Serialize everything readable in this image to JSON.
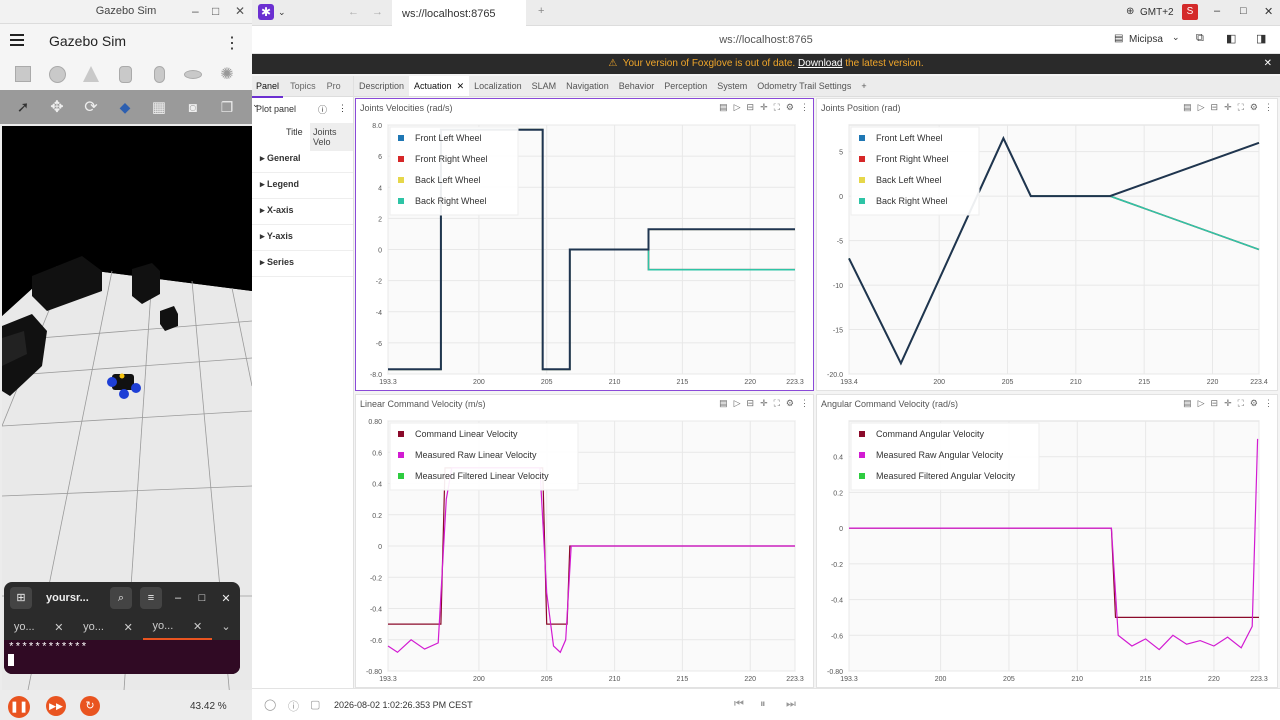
{
  "gazebo": {
    "window_title": "Gazebo Sim",
    "app_title": "Gazebo Sim",
    "zoom": "43.42 %",
    "window_controls": [
      "–",
      "□",
      "✕"
    ]
  },
  "terminal": {
    "title": "yoursr...",
    "tabs": [
      "yo...",
      "yo...",
      "yo..."
    ],
    "prompt": "************"
  },
  "foxglove": {
    "tab_title": "ws://localhost:8765",
    "address": "ws://localhost:8765",
    "timezone": "GMT+2",
    "user_initial": "S",
    "layout_name": "Micipsa",
    "banner_text": "Your version of Foxglove is out of date.",
    "banner_link": "Download",
    "banner_tail": "the latest version.",
    "left_tabs": [
      "Panel",
      "Topics",
      "Pro"
    ],
    "panel_header": "Plot panel",
    "title_label": "Title",
    "title_value": "Joints Velo",
    "sections": [
      "General",
      "Legend",
      "X-axis",
      "Y-axis",
      "Series"
    ],
    "main_tabs": [
      "Description",
      "Actuation",
      "Localization",
      "SLAM",
      "Navigation",
      "Behavior",
      "Perception",
      "System",
      "Odometry Trail Settings"
    ],
    "active_tab": "Actuation",
    "timestamp": "2026-08-02 1:02:26.353 PM CEST"
  },
  "chart_data": [
    {
      "type": "line",
      "title": "Joints Velocities (rad/s)",
      "xlim": [
        193.3,
        223.3
      ],
      "ylim": [
        -8,
        8
      ],
      "xticks": [
        "193.3",
        "200",
        "205",
        "210",
        "215",
        "220",
        "223.3"
      ],
      "yticks": [
        "8.0",
        "6",
        "4",
        "2",
        "0",
        "-2",
        "-4",
        "-6",
        "-8.0"
      ],
      "legend": "top-left",
      "colors": [
        "#1f77b4",
        "#d62728",
        "#e6d74a",
        "#2ec4a6"
      ],
      "series": [
        {
          "name": "Front Left Wheel",
          "x": [
            193.3,
            197.2,
            197.2,
            204.7,
            204.7,
            206.7,
            206.7,
            212.5,
            212.5,
            223.3
          ],
          "y": [
            -7.7,
            -7.7,
            7.7,
            7.7,
            -7.7,
            -7.7,
            0,
            0,
            1.3,
            1.3
          ]
        },
        {
          "name": "Front Right Wheel",
          "x": [
            193.3,
            197.2,
            197.2,
            204.7,
            204.7,
            206.7,
            206.7,
            212.5,
            212.5,
            223.3
          ],
          "y": [
            -7.7,
            -7.7,
            7.7,
            7.7,
            -7.7,
            -7.7,
            0,
            0,
            -1.3,
            -1.3
          ]
        },
        {
          "name": "Back Left Wheel",
          "x": [
            193.3,
            197.2,
            197.2,
            204.7,
            204.7,
            206.7,
            206.7,
            212.5,
            212.5,
            223.3
          ],
          "y": [
            -7.7,
            -7.7,
            7.7,
            7.7,
            -7.7,
            -7.7,
            0,
            0,
            1.3,
            1.3
          ]
        },
        {
          "name": "Back Right Wheel",
          "x": [
            193.3,
            197.2,
            197.2,
            204.7,
            204.7,
            206.7,
            206.7,
            212.5,
            212.5,
            223.3
          ],
          "y": [
            -7.7,
            -7.7,
            7.7,
            7.7,
            -7.7,
            -7.7,
            0,
            0,
            -1.3,
            -1.3
          ]
        }
      ]
    },
    {
      "type": "line",
      "title": "Joints Position (rad)",
      "xlim": [
        193.4,
        223.4
      ],
      "ylim": [
        -20,
        8
      ],
      "xticks": [
        "193.4",
        "200",
        "205",
        "210",
        "215",
        "220",
        "223.4"
      ],
      "yticks": [
        "5",
        "0",
        "-5",
        "-10",
        "-15",
        "-20.0"
      ],
      "legend": "top-left",
      "colors": [
        "#1f77b4",
        "#d62728",
        "#e6d74a",
        "#2ec4a6"
      ],
      "series": [
        {
          "name": "Front Left Wheel",
          "x": [
            193.4,
            197.2,
            204.7,
            206.7,
            212.5,
            223.4
          ],
          "y": [
            -7,
            -18.8,
            6.5,
            0,
            0,
            6
          ]
        },
        {
          "name": "Front Right Wheel",
          "x": [
            193.4,
            197.2,
            204.7,
            206.7,
            212.5,
            223.4
          ],
          "y": [
            -7,
            -18.8,
            6.5,
            0,
            0,
            -6
          ]
        },
        {
          "name": "Back Left Wheel",
          "x": [
            193.4,
            197.2,
            204.7,
            206.7,
            212.5,
            223.4
          ],
          "y": [
            -7,
            -18.8,
            6.5,
            0,
            0,
            6
          ]
        },
        {
          "name": "Back Right Wheel",
          "x": [
            193.4,
            197.2,
            204.7,
            206.7,
            212.5,
            223.4
          ],
          "y": [
            -7,
            -18.8,
            6.5,
            0,
            0,
            -6
          ]
        }
      ]
    },
    {
      "type": "line",
      "title": "Linear Command Velocity (m/s)",
      "xlim": [
        193.3,
        223.3
      ],
      "ylim": [
        -0.8,
        0.8
      ],
      "xticks": [
        "193.3",
        "200",
        "205",
        "210",
        "215",
        "220",
        "223.3"
      ],
      "yticks": [
        "0.80",
        "0.6",
        "0.4",
        "0.2",
        "0",
        "-0.2",
        "-0.4",
        "-0.6",
        "-0.80"
      ],
      "legend": "top-left",
      "colors": [
        "#8b0a2a",
        "#d21bd2",
        "#2ecc40"
      ],
      "series": [
        {
          "name": "Command Linear Velocity",
          "x": [
            193.3,
            197.2,
            197.5,
            204.7,
            205.0,
            206.5,
            206.7,
            223.3
          ],
          "y": [
            -0.5,
            -0.5,
            0.5,
            0.5,
            -0.5,
            -0.5,
            0,
            0
          ]
        },
        {
          "name": "Measured Raw Linear Velocity",
          "x": [
            193.3,
            194,
            195,
            196,
            197,
            197.6,
            198,
            204.5,
            205,
            205.5,
            206,
            206.4,
            206.8,
            223.3
          ],
          "y": [
            -0.64,
            -0.68,
            -0.6,
            -0.66,
            -0.62,
            0.3,
            0.5,
            0.5,
            -0.3,
            -0.64,
            -0.68,
            -0.6,
            0,
            0
          ]
        },
        {
          "name": "Measured Filtered Linear Velocity",
          "x": [],
          "y": []
        }
      ]
    },
    {
      "type": "line",
      "title": "Angular Command Velocity (rad/s)",
      "xlim": [
        193.3,
        223.3
      ],
      "ylim": [
        -0.8,
        0.6
      ],
      "xticks": [
        "193.3",
        "200",
        "205",
        "210",
        "215",
        "220",
        "223.3"
      ],
      "yticks": [
        "0.4",
        "0.2",
        "0",
        "-0.2",
        "-0.4",
        "-0.6",
        "-0.80"
      ],
      "legend": "top-left",
      "colors": [
        "#8b0a2a",
        "#d21bd2",
        "#2ecc40"
      ],
      "series": [
        {
          "name": "Command Angular Velocity",
          "x": [
            193.3,
            212.5,
            212.8,
            223.3
          ],
          "y": [
            0,
            0,
            -0.5,
            -0.5
          ]
        },
        {
          "name": "Measured Raw Angular Velocity",
          "x": [
            193.3,
            212.5,
            213,
            214,
            215,
            216,
            217,
            218,
            219,
            220,
            221,
            222,
            222.8,
            223.2
          ],
          "y": [
            0,
            0,
            -0.6,
            -0.66,
            -0.62,
            -0.68,
            -0.6,
            -0.65,
            -0.63,
            -0.66,
            -0.61,
            -0.67,
            -0.55,
            0.5
          ]
        },
        {
          "name": "Measured Filtered Angular Velocity",
          "x": [],
          "y": []
        }
      ]
    }
  ]
}
